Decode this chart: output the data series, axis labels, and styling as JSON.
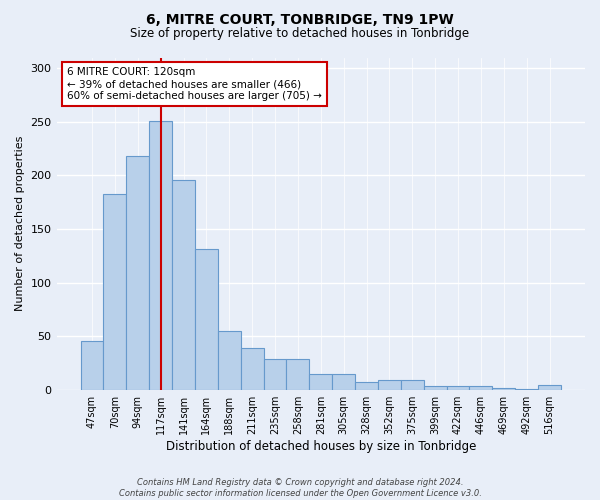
{
  "title": "6, MITRE COURT, TONBRIDGE, TN9 1PW",
  "subtitle": "Size of property relative to detached houses in Tonbridge",
  "xlabel": "Distribution of detached houses by size in Tonbridge",
  "ylabel": "Number of detached properties",
  "categories": [
    "47sqm",
    "70sqm",
    "94sqm",
    "117sqm",
    "141sqm",
    "164sqm",
    "188sqm",
    "211sqm",
    "235sqm",
    "258sqm",
    "281sqm",
    "305sqm",
    "328sqm",
    "352sqm",
    "375sqm",
    "399sqm",
    "422sqm",
    "446sqm",
    "469sqm",
    "492sqm",
    "516sqm"
  ],
  "values": [
    46,
    183,
    218,
    251,
    196,
    131,
    55,
    39,
    29,
    29,
    15,
    15,
    7,
    9,
    9,
    4,
    4,
    4,
    2,
    1,
    5
  ],
  "bar_color": "#b8d0ea",
  "bar_edge_color": "#6699cc",
  "highlight_index": 3,
  "vline_color": "#cc0000",
  "annotation_text": "6 MITRE COURT: 120sqm\n← 39% of detached houses are smaller (466)\n60% of semi-detached houses are larger (705) →",
  "annotation_box_color": "white",
  "annotation_box_edge": "#cc0000",
  "ylim": [
    0,
    310
  ],
  "yticks": [
    0,
    50,
    100,
    150,
    200,
    250,
    300
  ],
  "background_color": "#e8eef8",
  "grid_color": "#ffffff",
  "footer_line1": "Contains HM Land Registry data © Crown copyright and database right 2024.",
  "footer_line2": "Contains public sector information licensed under the Open Government Licence v3.0."
}
